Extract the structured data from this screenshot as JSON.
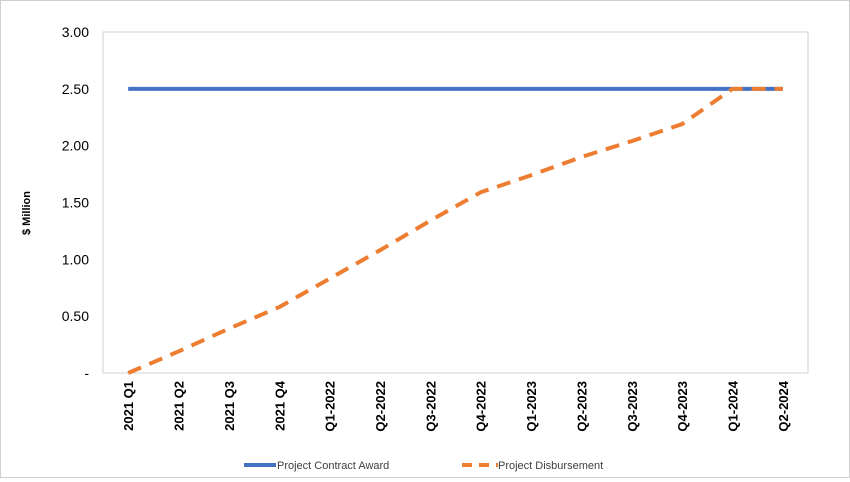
{
  "chart_data": {
    "type": "line",
    "title": "",
    "xlabel": "",
    "ylabel": "$ Million",
    "ylim": [
      0,
      3.0
    ],
    "yticks": [
      "-",
      "0.50",
      "1.00",
      "1.50",
      "2.00",
      "2.50",
      "3.00"
    ],
    "ytick_values": [
      0,
      0.5,
      1.0,
      1.5,
      2.0,
      2.5,
      3.0
    ],
    "categories": [
      "2021 Q1",
      "2021 Q2",
      "2021 Q3",
      "2021 Q4",
      "Q1-2022",
      "Q2-2022",
      "Q3-2022",
      "Q4-2022",
      "Q1-2023",
      "Q2-2023",
      "Q3-2023",
      "Q4-2023",
      "Q1-2024",
      "Q2-2024"
    ],
    "series": [
      {
        "name": "Project Contract Award",
        "color": "#4472C4",
        "style": "solid",
        "values": [
          2.5,
          2.5,
          2.5,
          2.5,
          2.5,
          2.5,
          2.5,
          2.5,
          2.5,
          2.5,
          2.5,
          2.5,
          2.5,
          2.5
        ]
      },
      {
        "name": "Project Disbursement",
        "color": "#ED7D31",
        "style": "dashed",
        "values": [
          0.0,
          0.19,
          0.39,
          0.58,
          0.83,
          1.08,
          1.34,
          1.59,
          1.74,
          1.9,
          2.04,
          2.19,
          2.5,
          2.5
        ]
      }
    ],
    "grid": false,
    "legend_position": "bottom"
  }
}
